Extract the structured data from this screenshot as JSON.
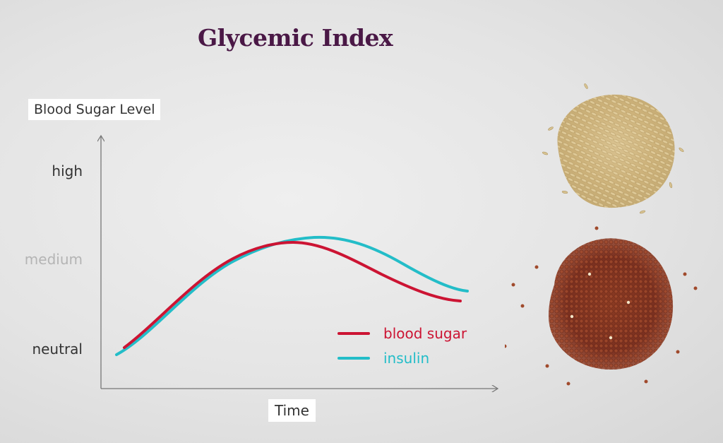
{
  "title": "Glycemic Index",
  "chart_data": {
    "type": "line",
    "ylabel": "Blood Sugar Level",
    "xlabel": "Time",
    "y_levels": [
      "high",
      "medium",
      "neutral"
    ],
    "series": [
      {
        "name": "blood sugar",
        "color": "#cc1433"
      },
      {
        "name": "insulin",
        "color": "#23bdc8"
      }
    ]
  },
  "images": [
    "brown-rice-pile",
    "red-quinoa-pile"
  ]
}
